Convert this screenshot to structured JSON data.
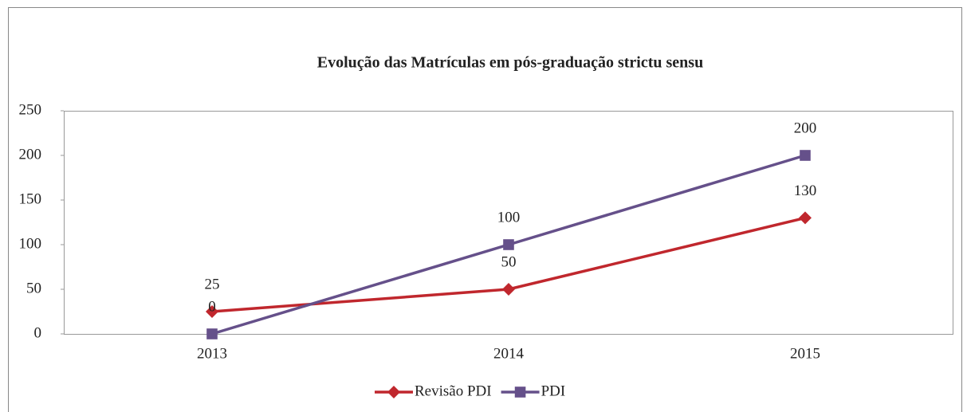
{
  "chart_data": {
    "type": "line",
    "title": "Evolução das Matrículas em pós-graduação strictu sensu",
    "categories": [
      "2013",
      "2014",
      "2015"
    ],
    "series": [
      {
        "name": "Revisão PDI",
        "color": "#c0272d",
        "marker": "diamond",
        "values": [
          25,
          50,
          130
        ]
      },
      {
        "name": "PDI",
        "color": "#65508a",
        "marker": "square",
        "values": [
          0,
          100,
          200
        ]
      }
    ],
    "ylim": [
      0,
      250
    ],
    "yticks": [
      0,
      50,
      100,
      150,
      200,
      250
    ],
    "grid": false
  }
}
